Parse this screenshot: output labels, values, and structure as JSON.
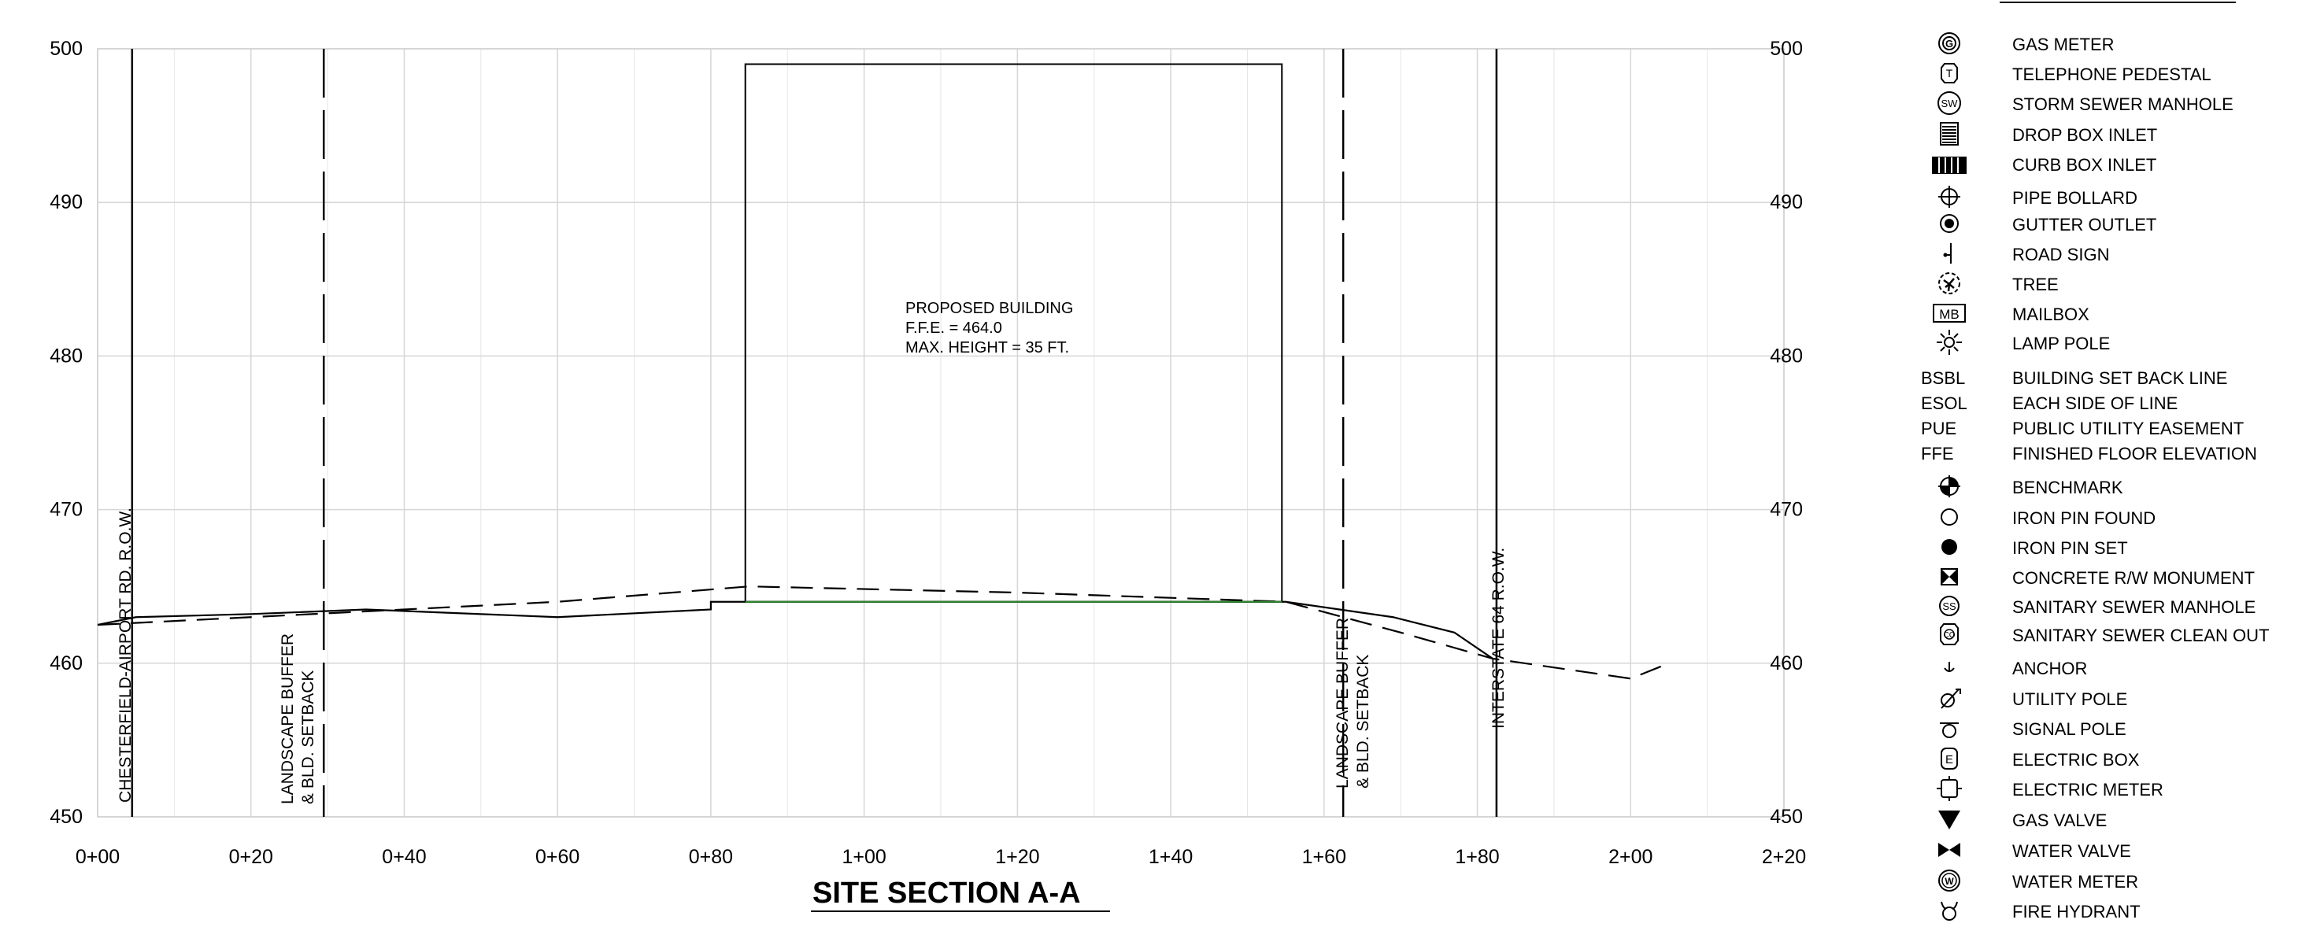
{
  "title": "SITE SECTION A-A",
  "building": {
    "line1": "PROPOSED BUILDING",
    "line2": "F.F.E. = 464.0",
    "line3": "MAX. HEIGHT = 35 FT."
  },
  "row_labels": {
    "left_row": "CHESTERFIELD-AIRPORT RD. R.O.W.",
    "left_buffer_line1": "LANDSCAPE BUFFER",
    "left_buffer_line2": "& BLD. SETBACK",
    "right_buffer_line1": "LANDSCAPE BUFFER",
    "right_buffer_line2": "& BLD. SETBACK",
    "right_row": "INTERSTATE 64 R.O.W."
  },
  "chart_data": {
    "type": "line",
    "xlim": [
      0,
      220
    ],
    "ylim": [
      450,
      500
    ],
    "x_ticks": [
      0,
      20,
      40,
      60,
      80,
      100,
      120,
      140,
      160,
      180,
      200,
      220
    ],
    "x_tick_labels": [
      "0+00",
      "0+20",
      "0+40",
      "0+60",
      "0+80",
      "1+00",
      "1+20",
      "1+40",
      "1+60",
      "1+80",
      "2+00",
      "2+20"
    ],
    "y_ticks": [
      450,
      460,
      470,
      480,
      490,
      500
    ],
    "y_tick_labels": [
      "450",
      "460",
      "470",
      "480",
      "490",
      "500"
    ],
    "grid": true,
    "series": [
      {
        "style": "solid",
        "x": [
          0,
          5,
          20,
          35,
          60,
          80,
          80,
          85,
          155,
          169,
          177,
          182
        ],
        "y": [
          462.5,
          463.0,
          463.2,
          463.5,
          463.0,
          463.5,
          464.0,
          464.0,
          464.0,
          463.0,
          462.0,
          460.3
        ]
      },
      {
        "style": "dashed",
        "x": [
          0,
          20,
          40,
          60,
          85,
          120,
          155,
          170,
          182,
          200,
          205
        ],
        "y": [
          462.5,
          463.0,
          463.5,
          464.0,
          465.0,
          464.6,
          464.0,
          462.0,
          460.3,
          459.0,
          460.0
        ]
      }
    ],
    "building_box": {
      "x0": 84.5,
      "x1": 154.5,
      "y0": 464.0,
      "y1": 499.0
    },
    "vertical_lines": [
      {
        "x": 4.5,
        "style": "solid"
      },
      {
        "x": 29.5,
        "style": "dashed"
      },
      {
        "x": 162.5,
        "style": "dashed"
      },
      {
        "x": 182.5,
        "style": "solid"
      }
    ]
  },
  "legend": {
    "items": [
      {
        "label": "GAS METER",
        "icon": "gas-meter-icon"
      },
      {
        "label": "TELEPHONE PEDESTAL",
        "icon": "telephone-pedestal-icon"
      },
      {
        "label": "STORM SEWER MANHOLE",
        "icon": "storm-sewer-manhole-icon"
      },
      {
        "label": "DROP BOX INLET",
        "icon": "drop-box-inlet-icon"
      },
      {
        "label": "CURB BOX INLET",
        "icon": "curb-box-inlet-icon"
      },
      {
        "label": "PIPE BOLLARD",
        "icon": "pipe-bollard-icon"
      },
      {
        "label": "GUTTER OUTLET",
        "icon": "gutter-outlet-icon"
      },
      {
        "label": "ROAD SIGN",
        "icon": "road-sign-icon"
      },
      {
        "label": "TREE",
        "icon": "tree-icon"
      },
      {
        "label": "MAILBOX",
        "icon": "mailbox-icon"
      },
      {
        "label": "LAMP POLE",
        "icon": "lamp-pole-icon"
      },
      {
        "abbr": "BSBL",
        "label": "BUILDING SET BACK LINE"
      },
      {
        "abbr": "ESOL",
        "label": "EACH SIDE OF LINE"
      },
      {
        "abbr": "PUE",
        "label": "PUBLIC UTILITY EASEMENT"
      },
      {
        "abbr": "FFE",
        "label": "FINISHED FLOOR ELEVATION"
      },
      {
        "label": "BENCHMARK",
        "icon": "benchmark-icon"
      },
      {
        "label": "IRON PIN FOUND",
        "icon": "iron-pin-found-icon"
      },
      {
        "label": "IRON PIN SET",
        "icon": "iron-pin-set-icon"
      },
      {
        "label": "CONCRETE R/W MONUMENT",
        "icon": "concrete-monument-icon"
      },
      {
        "label": "SANITARY SEWER MANHOLE",
        "icon": "sanitary-sewer-manhole-icon"
      },
      {
        "label": "SANITARY SEWER CLEAN OUT",
        "icon": "sanitary-sewer-cleanout-icon"
      },
      {
        "label": "ANCHOR",
        "icon": "anchor-icon"
      },
      {
        "label": "UTILITY POLE",
        "icon": "utility-pole-icon"
      },
      {
        "label": "SIGNAL POLE",
        "icon": "signal-pole-icon"
      },
      {
        "label": "ELECTRIC BOX",
        "icon": "electric-box-icon"
      },
      {
        "label": "ELECTRIC METER",
        "icon": "electric-meter-icon"
      },
      {
        "label": "GAS VALVE",
        "icon": "gas-valve-icon"
      },
      {
        "label": "WATER VALVE",
        "icon": "water-valve-icon"
      },
      {
        "label": "WATER METER",
        "icon": "water-meter-icon"
      },
      {
        "label": "FIRE HYDRANT",
        "icon": "fire-hydrant-icon"
      }
    ]
  }
}
